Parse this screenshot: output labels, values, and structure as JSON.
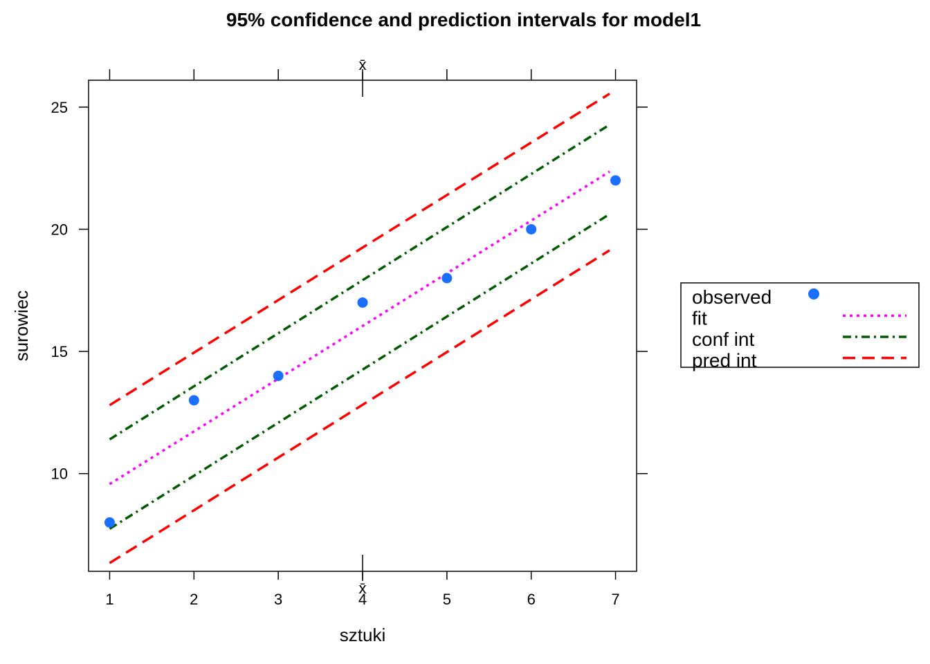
{
  "chart_data": {
    "type": "line",
    "title": "95% confidence and prediction intervals for model1",
    "xlabel": "sztuki",
    "ylabel": "surowiec",
    "xlim": [
      0.75,
      7.25
    ],
    "ylim": [
      6.0,
      26.1
    ],
    "x_ticks": [
      1,
      2,
      3,
      4,
      5,
      6,
      7
    ],
    "y_ticks": [
      10,
      15,
      20,
      25
    ],
    "xbar": {
      "label": "x̄",
      "value": 4
    },
    "grid": false,
    "legend_position": "right",
    "observed": {
      "name": "observed",
      "color": "#1a6fff",
      "x": [
        1,
        2,
        3,
        4,
        5,
        6,
        7
      ],
      "y": [
        8,
        13,
        14,
        17,
        18,
        20,
        22
      ]
    },
    "series": [
      {
        "name": "fit",
        "color": "#ff00ff",
        "style": "dotted",
        "x": [
          1,
          6.93
        ],
        "y": [
          9.57,
          22.36
        ]
      },
      {
        "name": "conf int",
        "color": "#005a00",
        "style": "dashdot",
        "x": [
          1,
          6.93
        ],
        "y": [
          11.4,
          24.28
        ]
      },
      {
        "name": "conf int",
        "color": "#005a00",
        "style": "dashdot",
        "x": [
          1,
          6.93
        ],
        "y": [
          7.74,
          20.62
        ]
      },
      {
        "name": "pred int",
        "color": "#ff0000",
        "style": "dashed",
        "x": [
          1,
          6.93
        ],
        "y": [
          12.8,
          25.55
        ]
      },
      {
        "name": "pred int",
        "color": "#ff0000",
        "style": "dashed",
        "x": [
          1,
          6.93
        ],
        "y": [
          6.34,
          19.14
        ]
      }
    ],
    "legend": [
      {
        "label": "observed",
        "kind": "point",
        "color": "#1a6fff"
      },
      {
        "label": "fit",
        "kind": "dotted",
        "color": "#ff00ff"
      },
      {
        "label": "conf int",
        "kind": "dashdot",
        "color": "#005a00"
      },
      {
        "label": "pred int",
        "kind": "dashed",
        "color": "#ff0000"
      }
    ]
  }
}
